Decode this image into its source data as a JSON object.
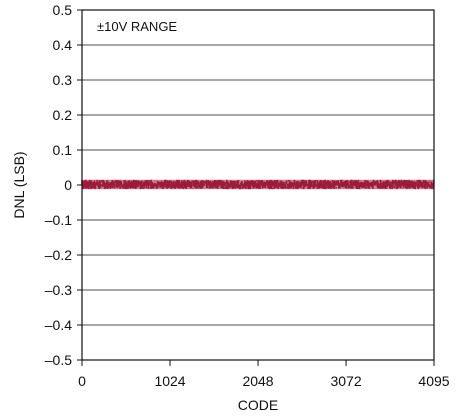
{
  "chart_data": {
    "type": "line",
    "xlabel": "CODE",
    "ylabel": "DNL (LSB)",
    "annotation": "±10V RANGE",
    "xlim": [
      0,
      4095
    ],
    "ylim": [
      -0.5,
      0.5
    ],
    "x_ticks": [
      0,
      1024,
      2048,
      3072,
      4095
    ],
    "x_tick_labels": [
      "0",
      "1024",
      "2048",
      "3072",
      "4095"
    ],
    "y_ticks": [
      0.5,
      0.4,
      0.3,
      0.2,
      0.1,
      0,
      -0.1,
      -0.2,
      -0.3,
      -0.4,
      -0.5
    ],
    "y_tick_labels": [
      "0.5",
      "0.4",
      "0.3",
      "0.2",
      "0.1",
      "0",
      "–0.1",
      "–0.2",
      "–0.3",
      "–0.4",
      "–0.5"
    ],
    "grid": true,
    "series": [
      {
        "color": "#9e1b3b",
        "code_range": [
          0,
          4095
        ],
        "dnl_range": [
          -0.012,
          0.015
        ]
      }
    ]
  }
}
